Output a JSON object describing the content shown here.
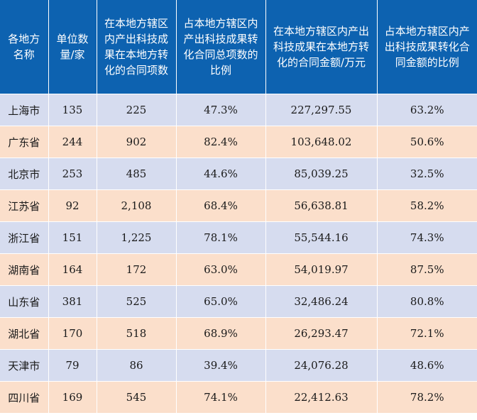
{
  "table": {
    "headers": [
      "各地方名称",
      "单位数量/家",
      "在本地方辖区内产出科技成果在本地方转化的合同项数",
      "占本地方辖区内产出科技成果转化合同总项数的比例",
      "在本地方辖区内产出科技成果在本地方转化的合同金额/万元",
      "占本地方辖区内产出科技成果转化合同金额的比例"
    ],
    "rows": [
      [
        "上海市",
        "135",
        "225",
        "47.3%",
        "227,297.55",
        "63.2%"
      ],
      [
        "广东省",
        "244",
        "902",
        "82.4%",
        "103,648.02",
        "50.6%"
      ],
      [
        "北京市",
        "253",
        "485",
        "44.6%",
        "85,039.25",
        "32.5%"
      ],
      [
        "江苏省",
        "92",
        "2,108",
        "68.4%",
        "56,638.81",
        "58.2%"
      ],
      [
        "浙江省",
        "151",
        "1,225",
        "78.1%",
        "55,544.16",
        "74.3%"
      ],
      [
        "湖南省",
        "164",
        "172",
        "63.0%",
        "54,019.97",
        "87.5%"
      ],
      [
        "山东省",
        "381",
        "525",
        "65.0%",
        "32,486.24",
        "80.8%"
      ],
      [
        "湖北省",
        "170",
        "518",
        "68.9%",
        "26,293.47",
        "72.1%"
      ],
      [
        "天津市",
        "79",
        "86",
        "39.4%",
        "24,076.28",
        "48.6%"
      ],
      [
        "四川省",
        "169",
        "545",
        "74.1%",
        "22,412.63",
        "78.2%"
      ]
    ]
  },
  "colors": {
    "header_bg": "#0d62b0",
    "row_odd_bg": "#d6dcef",
    "row_even_bg": "#fbdfcb"
  }
}
